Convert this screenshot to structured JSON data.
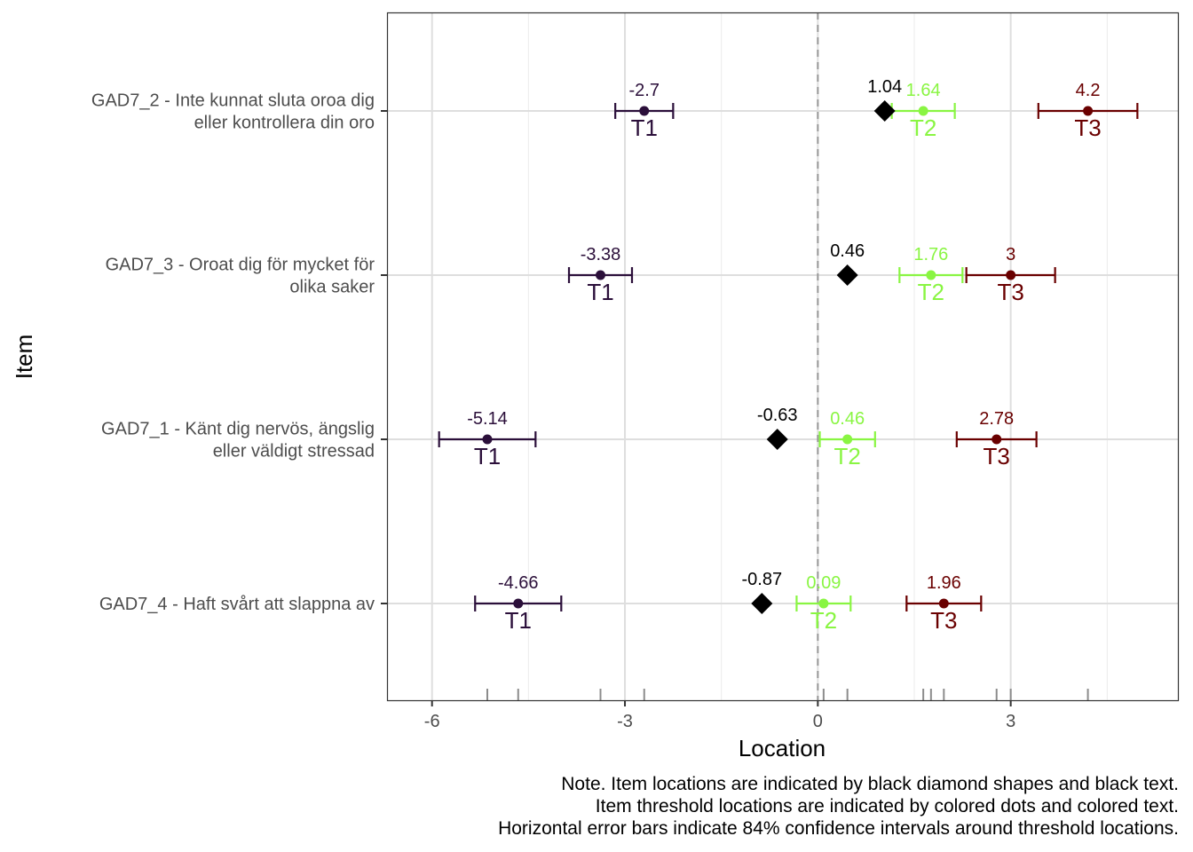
{
  "chart_data": {
    "type": "scatter",
    "xlabel": "Location",
    "ylabel": "Item",
    "xlim": [
      -6.7,
      5.6
    ],
    "x_ticks": [
      -6,
      -3,
      0,
      3
    ],
    "x_tick_labels": [
      "-6",
      "-3",
      "0",
      "3"
    ],
    "grid": true,
    "reference_line_x": 0,
    "threshold_labels": [
      "T1",
      "T2",
      "T3"
    ],
    "threshold_colors": [
      "#2b0f3a",
      "#89f542",
      "#6a0000"
    ],
    "item_color": "#000000",
    "items": [
      {
        "label_lines": [
          "GAD7_2 - Inte kunnat sluta oroa dig",
          "eller kontrollera din oro"
        ],
        "location": 1.04,
        "location_label": "1.04",
        "thresholds": [
          {
            "name": "T1",
            "value": -2.7,
            "value_label": "-2.7",
            "ci": [
              -3.15,
              -2.25
            ]
          },
          {
            "name": "T2",
            "value": 1.64,
            "value_label": "1.64",
            "ci": [
              1.15,
              2.13
            ]
          },
          {
            "name": "T3",
            "value": 4.2,
            "value_label": "4.2",
            "ci": [
              3.43,
              4.97
            ]
          }
        ]
      },
      {
        "label_lines": [
          "GAD7_3 - Oroat dig för mycket för",
          "olika saker"
        ],
        "location": 0.46,
        "location_label": "0.46",
        "thresholds": [
          {
            "name": "T1",
            "value": -3.38,
            "value_label": "-3.38",
            "ci": [
              -3.87,
              -2.89
            ]
          },
          {
            "name": "T2",
            "value": 1.76,
            "value_label": "1.76",
            "ci": [
              1.27,
              2.25
            ]
          },
          {
            "name": "T3",
            "value": 3,
            "value_label": "3",
            "ci": [
              2.31,
              3.69
            ]
          }
        ]
      },
      {
        "label_lines": [
          "GAD7_1 - Känt dig nervös, ängslig",
          "eller väldigt stressad"
        ],
        "location": -0.63,
        "location_label": "-0.63",
        "thresholds": [
          {
            "name": "T1",
            "value": -5.14,
            "value_label": "-5.14",
            "ci": [
              -5.89,
              -4.39
            ]
          },
          {
            "name": "T2",
            "value": 0.46,
            "value_label": "0.46",
            "ci": [
              0.03,
              0.89
            ]
          },
          {
            "name": "T3",
            "value": 2.78,
            "value_label": "2.78",
            "ci": [
              2.16,
              3.4
            ]
          }
        ]
      },
      {
        "label_lines": [
          "GAD7_4 - Haft svårt att slappna av"
        ],
        "location": -0.87,
        "location_label": "-0.87",
        "thresholds": [
          {
            "name": "T1",
            "value": -4.66,
            "value_label": "-4.66",
            "ci": [
              -5.33,
              -3.99
            ]
          },
          {
            "name": "T2",
            "value": 0.09,
            "value_label": "0.09",
            "ci": [
              -0.33,
              0.51
            ]
          },
          {
            "name": "T3",
            "value": 1.96,
            "value_label": "1.96",
            "ci": [
              1.38,
              2.54
            ]
          }
        ]
      }
    ],
    "rug": [
      -5.14,
      -4.66,
      -3.38,
      -2.7,
      0.09,
      0.46,
      1.64,
      1.76,
      1.96,
      2.78,
      3,
      4.2
    ],
    "note_lines": [
      "Note. Item locations are indicated by black diamond shapes and black text.",
      "Item threshold locations are indicated by colored dots and colored text.",
      "Horizontal error bars indicate 84% confidence intervals around threshold locations."
    ]
  }
}
